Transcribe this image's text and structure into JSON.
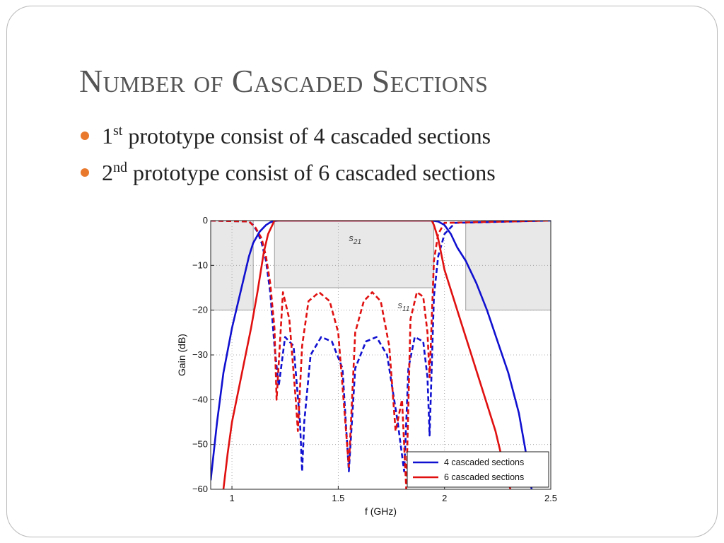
{
  "slide": {
    "title": "Number of Cascaded Sections",
    "bullets": [
      {
        "num": "1",
        "sup": "st",
        "text": " prototype consist of 4 cascaded sections"
      },
      {
        "num": "2",
        "sup": "nd",
        "text": " prototype consist of 6 cascaded sections"
      }
    ],
    "bullet_color": "#e8792d"
  },
  "chart_data": {
    "type": "line",
    "xlabel": "f (GHz)",
    "ylabel": "Gain (dB)",
    "xlim": [
      0.9,
      2.5
    ],
    "ylim": [
      -60,
      0
    ],
    "xticks": [
      "1",
      "1.5",
      "2",
      "2.5"
    ],
    "yticks": [
      "0",
      "−10",
      "−20",
      "−30",
      "−40",
      "−50",
      "−60"
    ],
    "grid": "dotted",
    "legend_position": "bottom-right",
    "annotations": [
      {
        "text": "s",
        "sub": "21",
        "x": 1.55,
        "y": -3
      },
      {
        "text": "s",
        "sub": "11",
        "x": 1.78,
        "y": -18
      }
    ],
    "mask_regions": [
      {
        "x": [
          0.9,
          1.1
        ],
        "y": [
          -20,
          0
        ]
      },
      {
        "x": [
          1.2,
          1.95
        ],
        "y": [
          -15,
          0
        ]
      },
      {
        "x": [
          2.1,
          2.5
        ],
        "y": [
          -20,
          0
        ]
      }
    ],
    "series": [
      {
        "name": "4 cascaded sections",
        "color": "#1010d0",
        "style": "solid",
        "kind": "s21",
        "x": [
          0.9,
          0.93,
          0.96,
          1.0,
          1.04,
          1.08,
          1.1,
          1.13,
          1.16,
          1.18,
          1.2,
          1.22,
          1.94,
          1.97,
          2.0,
          2.03,
          2.06,
          2.1,
          2.15,
          2.2,
          2.25,
          2.3,
          2.35,
          2.38,
          2.41
        ],
        "y": [
          -58,
          -45,
          -34,
          -24,
          -16,
          -8,
          -5,
          -2.5,
          -1,
          -0.4,
          -0.1,
          0,
          0,
          -0.2,
          -1,
          -3,
          -6,
          -9,
          -14,
          -20,
          -27,
          -34,
          -43,
          -51,
          -60
        ]
      },
      {
        "name": "6 cascaded sections",
        "color": "#e01010",
        "style": "solid",
        "kind": "s21",
        "x": [
          0.96,
          0.98,
          1.0,
          1.03,
          1.06,
          1.09,
          1.12,
          1.15,
          1.17,
          1.19,
          1.2,
          1.94,
          1.95,
          1.97,
          2.0,
          2.04,
          2.08,
          2.12,
          2.16,
          2.2,
          2.24,
          2.28,
          2.31
        ],
        "y": [
          -60,
          -52,
          -45,
          -38,
          -31,
          -24,
          -16,
          -7,
          -3,
          -1,
          0,
          0,
          -1,
          -4,
          -11,
          -17,
          -23,
          -29,
          -35,
          -41,
          -47,
          -55,
          -60
        ]
      },
      {
        "name": "",
        "color": "#1010d0",
        "style": "dashed",
        "kind": "s11",
        "x": [
          0.9,
          1.08,
          1.1,
          1.12,
          1.14,
          1.16,
          1.18,
          1.2,
          1.22,
          1.25,
          1.29,
          1.32,
          1.33,
          1.34,
          1.37,
          1.42,
          1.47,
          1.52,
          1.55,
          1.58,
          1.63,
          1.68,
          1.73,
          1.78,
          1.81,
          1.82,
          1.83,
          1.86,
          1.9,
          1.92,
          1.93,
          1.95,
          1.97,
          2.0,
          2.05,
          2.5
        ],
        "y": [
          0,
          -0.2,
          -1,
          -2.5,
          -5,
          -9,
          -16,
          -28,
          -37,
          -26,
          -28,
          -45,
          -56,
          -45,
          -30,
          -26,
          -27,
          -33,
          -56,
          -33,
          -27,
          -26,
          -30,
          -45,
          -56,
          -45,
          -33,
          -26,
          -27,
          -35,
          -48,
          -17,
          -8,
          -3,
          -0.5,
          0
        ]
      },
      {
        "name": "",
        "color": "#e01010",
        "style": "dashed",
        "kind": "s11",
        "x": [
          0.9,
          1.08,
          1.11,
          1.14,
          1.16,
          1.18,
          1.2,
          1.21,
          1.22,
          1.24,
          1.27,
          1.3,
          1.31,
          1.33,
          1.36,
          1.41,
          1.46,
          1.5,
          1.55,
          1.58,
          1.62,
          1.66,
          1.7,
          1.74,
          1.77,
          1.8,
          1.82,
          1.84,
          1.87,
          1.9,
          1.92,
          1.93,
          1.95,
          1.97,
          2.0,
          2.5
        ],
        "y": [
          0,
          -0.2,
          -1.5,
          -4,
          -8,
          -14,
          -24,
          -40,
          -32,
          -16,
          -22,
          -40,
          -47,
          -28,
          -18,
          -16,
          -18,
          -25,
          -55,
          -25,
          -18,
          -16,
          -18,
          -28,
          -47,
          -40,
          -60,
          -22,
          -16,
          -17,
          -25,
          -35,
          -9,
          -3,
          -0.5,
          0
        ]
      }
    ]
  }
}
